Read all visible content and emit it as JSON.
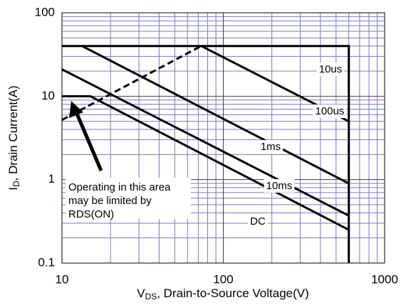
{
  "chart_data": {
    "type": "line",
    "x_label": {
      "main": "V",
      "sub": "DS",
      "rest": ", Drain-to-Source Voltage(V)"
    },
    "y_label": {
      "main": "I",
      "sub": "D",
      "rest": ", Drain Current(A)"
    },
    "xlim": [
      10,
      1000
    ],
    "ylim": [
      0.1,
      100
    ],
    "xticks": [
      10,
      100,
      1000
    ],
    "yticks": [
      0.1,
      1,
      10,
      100
    ],
    "xscale": "log",
    "yscale": "log",
    "grid": true,
    "series": [
      {
        "name": "10us",
        "color": "#000000",
        "x": [
          10,
          600,
          600
        ],
        "values": [
          40,
          40,
          0.1
        ]
      },
      {
        "name": "100us",
        "color": "#000000",
        "x": [
          73,
          600
        ],
        "values": [
          40,
          5
        ]
      },
      {
        "name": "1ms",
        "color": "#000000",
        "x": [
          13.3,
          600
        ],
        "values": [
          40,
          0.9
        ]
      },
      {
        "name": "10ms",
        "color": "#000000",
        "x": [
          10,
          600
        ],
        "values": [
          21,
          0.37
        ]
      },
      {
        "name": "DC",
        "color": "#000000",
        "x": [
          10,
          15,
          600
        ],
        "values": [
          10,
          10,
          0.25
        ]
      }
    ],
    "limit_line": {
      "color": "#000000",
      "dashed": true,
      "x": [
        10,
        73
      ],
      "values": [
        5.2,
        40
      ]
    },
    "annotation": [
      "Operating in this area",
      "may be limited by",
      "RDS(ON)"
    ]
  }
}
